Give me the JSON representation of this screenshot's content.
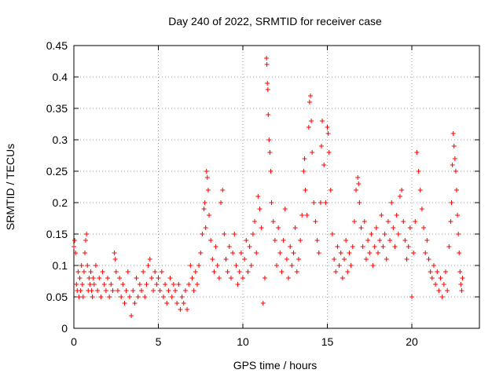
{
  "chart_data": {
    "type": "scatter",
    "title": "Day 240 of 2022, SRMTID for receiver case",
    "xlabel": "GPS time / hours",
    "ylabel": "SRMTID / TECUs",
    "xlim": [
      0,
      24
    ],
    "ylim": [
      0,
      0.45
    ],
    "xticks": [
      0,
      5,
      10,
      15,
      20
    ],
    "xtick_labels": [
      "0",
      "5",
      "10",
      "15",
      "20"
    ],
    "yticks": [
      0,
      0.05,
      0.1,
      0.15,
      0.2,
      0.25,
      0.3,
      0.35,
      0.4,
      0.45
    ],
    "ytick_labels": [
      "0",
      "0.05",
      "0.1",
      "0.15",
      "0.2",
      "0.25",
      "0.3",
      "0.35",
      "0.4",
      "0.45"
    ],
    "grid": true,
    "marker": "+",
    "color": "#ff0000",
    "x_range_of_data": [
      0,
      23
    ],
    "series": [
      {
        "name": "SRMTID",
        "points": [
          [
            0.0,
            0.13
          ],
          [
            0.05,
            0.14
          ],
          [
            0.1,
            0.12
          ],
          [
            0.15,
            0.07
          ],
          [
            0.2,
            0.06
          ],
          [
            0.25,
            0.09
          ],
          [
            0.3,
            0.05
          ],
          [
            0.35,
            0.08
          ],
          [
            0.4,
            0.06
          ],
          [
            0.45,
            0.1
          ],
          [
            0.5,
            0.07
          ],
          [
            0.55,
            0.05
          ],
          [
            0.6,
            0.09
          ],
          [
            0.65,
            0.12
          ],
          [
            0.7,
            0.14
          ],
          [
            0.75,
            0.15
          ],
          [
            0.8,
            0.1
          ],
          [
            0.85,
            0.06
          ],
          [
            0.9,
            0.08
          ],
          [
            0.95,
            0.07
          ],
          [
            1.0,
            0.09
          ],
          [
            1.05,
            0.06
          ],
          [
            1.1,
            0.05
          ],
          [
            1.15,
            0.08
          ],
          [
            1.2,
            0.07
          ],
          [
            1.3,
            0.1
          ],
          [
            1.4,
            0.06
          ],
          [
            1.5,
            0.08
          ],
          [
            1.6,
            0.05
          ],
          [
            1.7,
            0.09
          ],
          [
            1.8,
            0.07
          ],
          [
            1.9,
            0.06
          ],
          [
            2.0,
            0.08
          ],
          [
            2.1,
            0.05
          ],
          [
            2.2,
            0.07
          ],
          [
            2.3,
            0.06
          ],
          [
            2.4,
            0.12
          ],
          [
            2.45,
            0.11
          ],
          [
            2.5,
            0.09
          ],
          [
            2.6,
            0.06
          ],
          [
            2.7,
            0.08
          ],
          [
            2.8,
            0.05
          ],
          [
            2.9,
            0.07
          ],
          [
            3.0,
            0.04
          ],
          [
            3.1,
            0.06
          ],
          [
            3.2,
            0.09
          ],
          [
            3.3,
            0.05
          ],
          [
            3.4,
            0.02
          ],
          [
            3.5,
            0.06
          ],
          [
            3.6,
            0.04
          ],
          [
            3.7,
            0.08
          ],
          [
            3.8,
            0.05
          ],
          [
            3.9,
            0.07
          ],
          [
            4.0,
            0.06
          ],
          [
            4.1,
            0.09
          ],
          [
            4.2,
            0.05
          ],
          [
            4.3,
            0.07
          ],
          [
            4.4,
            0.1
          ],
          [
            4.5,
            0.11
          ],
          [
            4.6,
            0.08
          ],
          [
            4.7,
            0.06
          ],
          [
            4.8,
            0.09
          ],
          [
            4.9,
            0.07
          ],
          [
            5.0,
            0.08
          ],
          [
            5.1,
            0.06
          ],
          [
            5.2,
            0.09
          ],
          [
            5.3,
            0.05
          ],
          [
            5.4,
            0.07
          ],
          [
            5.5,
            0.04
          ],
          [
            5.6,
            0.06
          ],
          [
            5.7,
            0.08
          ],
          [
            5.8,
            0.05
          ],
          [
            5.9,
            0.07
          ],
          [
            6.0,
            0.06
          ],
          [
            6.1,
            0.04
          ],
          [
            6.2,
            0.07
          ],
          [
            6.3,
            0.03
          ],
          [
            6.4,
            0.05
          ],
          [
            6.5,
            0.04
          ],
          [
            6.6,
            0.06
          ],
          [
            6.7,
            0.03
          ],
          [
            6.8,
            0.07
          ],
          [
            6.9,
            0.1
          ],
          [
            7.0,
            0.08
          ],
          [
            7.1,
            0.06
          ],
          [
            7.2,
            0.09
          ],
          [
            7.3,
            0.07
          ],
          [
            7.4,
            0.1
          ],
          [
            7.5,
            0.12
          ],
          [
            7.6,
            0.15
          ],
          [
            7.7,
            0.19
          ],
          [
            7.75,
            0.2
          ],
          [
            7.8,
            0.16
          ],
          [
            7.85,
            0.25
          ],
          [
            7.9,
            0.24
          ],
          [
            7.95,
            0.22
          ],
          [
            8.0,
            0.18
          ],
          [
            8.1,
            0.14
          ],
          [
            8.2,
            0.11
          ],
          [
            8.3,
            0.09
          ],
          [
            8.4,
            0.13
          ],
          [
            8.5,
            0.1
          ],
          [
            8.6,
            0.08
          ],
          [
            8.7,
            0.2
          ],
          [
            8.8,
            0.22
          ],
          [
            8.9,
            0.15
          ],
          [
            9.0,
            0.11
          ],
          [
            9.1,
            0.09
          ],
          [
            9.2,
            0.13
          ],
          [
            9.3,
            0.08
          ],
          [
            9.4,
            0.12
          ],
          [
            9.5,
            0.15
          ],
          [
            9.6,
            0.1
          ],
          [
            9.7,
            0.07
          ],
          [
            9.8,
            0.09
          ],
          [
            9.9,
            0.12
          ],
          [
            10.0,
            0.08
          ],
          [
            10.1,
            0.11
          ],
          [
            10.2,
            0.14
          ],
          [
            10.3,
            0.09
          ],
          [
            10.4,
            0.13
          ],
          [
            10.5,
            0.1
          ],
          [
            10.6,
            0.15
          ],
          [
            10.7,
            0.17
          ],
          [
            10.8,
            0.12
          ],
          [
            10.9,
            0.21
          ],
          [
            11.0,
            0.19
          ],
          [
            11.1,
            0.16
          ],
          [
            11.2,
            0.04
          ],
          [
            11.3,
            0.08
          ],
          [
            11.4,
            0.43
          ],
          [
            11.42,
            0.42
          ],
          [
            11.45,
            0.39
          ],
          [
            11.48,
            0.38
          ],
          [
            11.5,
            0.34
          ],
          [
            11.55,
            0.3
          ],
          [
            11.6,
            0.28
          ],
          [
            11.65,
            0.25
          ],
          [
            11.7,
            0.2
          ],
          [
            11.8,
            0.17
          ],
          [
            11.9,
            0.14
          ],
          [
            12.0,
            0.1
          ],
          [
            12.1,
            0.16
          ],
          [
            12.2,
            0.12
          ],
          [
            12.3,
            0.09
          ],
          [
            12.4,
            0.14
          ],
          [
            12.5,
            0.19
          ],
          [
            12.6,
            0.11
          ],
          [
            12.7,
            0.08
          ],
          [
            12.8,
            0.13
          ],
          [
            12.9,
            0.1
          ],
          [
            13.0,
            0.12
          ],
          [
            13.1,
            0.16
          ],
          [
            13.2,
            0.09
          ],
          [
            13.3,
            0.11
          ],
          [
            13.4,
            0.14
          ],
          [
            13.5,
            0.18
          ],
          [
            13.6,
            0.25
          ],
          [
            13.65,
            0.27
          ],
          [
            13.7,
            0.22
          ],
          [
            13.8,
            0.18
          ],
          [
            13.9,
            0.32
          ],
          [
            13.95,
            0.36
          ],
          [
            14.0,
            0.37
          ],
          [
            14.05,
            0.33
          ],
          [
            14.1,
            0.28
          ],
          [
            14.2,
            0.2
          ],
          [
            14.3,
            0.17
          ],
          [
            14.4,
            0.14
          ],
          [
            14.5,
            0.12
          ],
          [
            14.6,
            0.2
          ],
          [
            14.65,
            0.29
          ],
          [
            14.7,
            0.33
          ],
          [
            14.8,
            0.26
          ],
          [
            14.9,
            0.2
          ],
          [
            15.0,
            0.32
          ],
          [
            15.05,
            0.31
          ],
          [
            15.1,
            0.28
          ],
          [
            15.2,
            0.22
          ],
          [
            15.3,
            0.15
          ],
          [
            15.4,
            0.11
          ],
          [
            15.5,
            0.09
          ],
          [
            15.6,
            0.13
          ],
          [
            15.7,
            0.1
          ],
          [
            15.8,
            0.12
          ],
          [
            15.9,
            0.08
          ],
          [
            16.0,
            0.11
          ],
          [
            16.1,
            0.14
          ],
          [
            16.2,
            0.09
          ],
          [
            16.3,
            0.12
          ],
          [
            16.4,
            0.1
          ],
          [
            16.5,
            0.13
          ],
          [
            16.6,
            0.17
          ],
          [
            16.7,
            0.22
          ],
          [
            16.8,
            0.24
          ],
          [
            16.85,
            0.23
          ],
          [
            16.9,
            0.2
          ],
          [
            17.0,
            0.16
          ],
          [
            17.1,
            0.13
          ],
          [
            17.2,
            0.17
          ],
          [
            17.3,
            0.11
          ],
          [
            17.4,
            0.14
          ],
          [
            17.5,
            0.12
          ],
          [
            17.6,
            0.15
          ],
          [
            17.7,
            0.1
          ],
          [
            17.8,
            0.13
          ],
          [
            17.9,
            0.16
          ],
          [
            18.0,
            0.12
          ],
          [
            18.1,
            0.14
          ],
          [
            18.2,
            0.18
          ],
          [
            18.3,
            0.13
          ],
          [
            18.4,
            0.15
          ],
          [
            18.5,
            0.11
          ],
          [
            18.6,
            0.17
          ],
          [
            18.7,
            0.14
          ],
          [
            18.8,
            0.2
          ],
          [
            18.9,
            0.16
          ],
          [
            19.0,
            0.13
          ],
          [
            19.1,
            0.18
          ],
          [
            19.2,
            0.15
          ],
          [
            19.3,
            0.21
          ],
          [
            19.4,
            0.22
          ],
          [
            19.5,
            0.17
          ],
          [
            19.6,
            0.14
          ],
          [
            19.7,
            0.11
          ],
          [
            19.8,
            0.13
          ],
          [
            19.9,
            0.16
          ],
          [
            20.0,
            0.05
          ],
          [
            20.1,
            0.12
          ],
          [
            20.2,
            0.17
          ],
          [
            20.3,
            0.28
          ],
          [
            20.4,
            0.25
          ],
          [
            20.5,
            0.22
          ],
          [
            20.6,
            0.19
          ],
          [
            20.7,
            0.16
          ],
          [
            20.8,
            0.12
          ],
          [
            20.9,
            0.14
          ],
          [
            21.0,
            0.11
          ],
          [
            21.1,
            0.09
          ],
          [
            21.2,
            0.08
          ],
          [
            21.3,
            0.1
          ],
          [
            21.4,
            0.07
          ],
          [
            21.5,
            0.09
          ],
          [
            21.6,
            0.06
          ],
          [
            21.7,
            0.08
          ],
          [
            21.8,
            0.05
          ],
          [
            21.9,
            0.07
          ],
          [
            22.0,
            0.09
          ],
          [
            22.1,
            0.06
          ],
          [
            22.2,
            0.13
          ],
          [
            22.3,
            0.17
          ],
          [
            22.35,
            0.2
          ],
          [
            22.4,
            0.26
          ],
          [
            22.45,
            0.31
          ],
          [
            22.5,
            0.29
          ],
          [
            22.55,
            0.27
          ],
          [
            22.6,
            0.25
          ],
          [
            22.65,
            0.22
          ],
          [
            22.7,
            0.18
          ],
          [
            22.75,
            0.15
          ],
          [
            22.8,
            0.12
          ],
          [
            22.85,
            0.09
          ],
          [
            22.9,
            0.07
          ],
          [
            22.95,
            0.06
          ],
          [
            23.0,
            0.08
          ]
        ]
      }
    ]
  }
}
